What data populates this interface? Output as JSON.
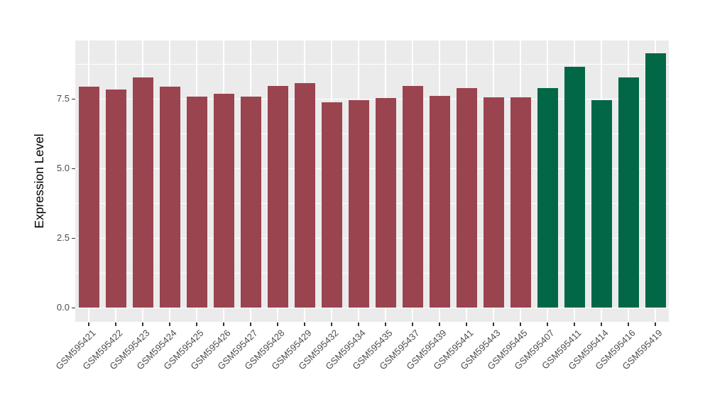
{
  "figure": {
    "background": "#FFFFFF",
    "panel_background": "#EBEBEB",
    "gridline_color": "#FFFFFF",
    "tick_mark_color": "#333333",
    "tick_label_color": "#4D4D4D",
    "axis_title_color": "#000000"
  },
  "chart_data": {
    "type": "bar",
    "title": "",
    "xlabel": "",
    "ylabel": "Expression Level",
    "categories": [
      "GSM595421",
      "GSM595422",
      "GSM595423",
      "GSM595424",
      "GSM595425",
      "GSM595426",
      "GSM595427",
      "GSM595428",
      "GSM595429",
      "GSM595432",
      "GSM595434",
      "GSM595435",
      "GSM595437",
      "GSM595439",
      "GSM595441",
      "GSM595443",
      "GSM595445",
      "GSM595407",
      "GSM595411",
      "GSM595414",
      "GSM595416",
      "GSM595419"
    ],
    "values": [
      7.95,
      7.84,
      8.27,
      7.95,
      7.58,
      7.68,
      7.58,
      7.96,
      8.06,
      7.37,
      7.47,
      7.54,
      7.96,
      7.6,
      7.89,
      7.57,
      7.55,
      7.9,
      8.66,
      7.47,
      8.28,
      9.13
    ],
    "groups": [
      0,
      0,
      0,
      0,
      0,
      0,
      0,
      0,
      0,
      0,
      0,
      0,
      0,
      0,
      0,
      0,
      0,
      1,
      1,
      1,
      1,
      1
    ],
    "palette": [
      "#9A4450",
      "#016747"
    ],
    "yticks": {
      "values": [
        0.0,
        2.5,
        5.0,
        7.5
      ],
      "labels": [
        "0.0",
        "2.5",
        "5.0",
        "7.5"
      ]
    },
    "minor_yticks": [
      1.25,
      3.75,
      6.25,
      8.75
    ],
    "ylim": [
      -0.5,
      9.6
    ],
    "grid": "on",
    "legend": "none",
    "x_label_angle": 45
  }
}
